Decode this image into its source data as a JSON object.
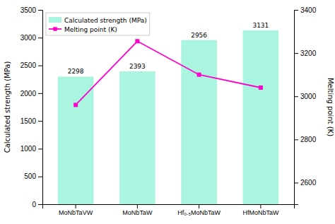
{
  "chart_data": {
    "type": "bar",
    "categories": [
      "MoNbTaVW",
      "MoNbTaW",
      "Hf₀.₅MoNbTaW",
      "HfMoNbTaW"
    ],
    "series": [
      {
        "name": "Calculated strength (MPa)",
        "type": "bar",
        "color": "#aaf5e0",
        "values": [
          2298,
          2393,
          2956,
          3131
        ]
      },
      {
        "name": "Melting point (K)",
        "type": "line",
        "axis": "y2",
        "color": "#FF00CC",
        "marker": "square",
        "values": [
          2960,
          3255,
          3100,
          3040
        ]
      }
    ],
    "data_labels": true,
    "ylabel": "Calculated strength (MPa)",
    "y2label": "Melting point (K)",
    "ylim": [
      0,
      3500
    ],
    "yticks": [
      0,
      500,
      1000,
      1500,
      2000,
      2500,
      3000,
      3500
    ],
    "y2lim": [
      2500,
      3400
    ],
    "y2ticks": [
      2600,
      2800,
      3000,
      3200,
      3400
    ],
    "legend": "upper left",
    "grid": false
  }
}
